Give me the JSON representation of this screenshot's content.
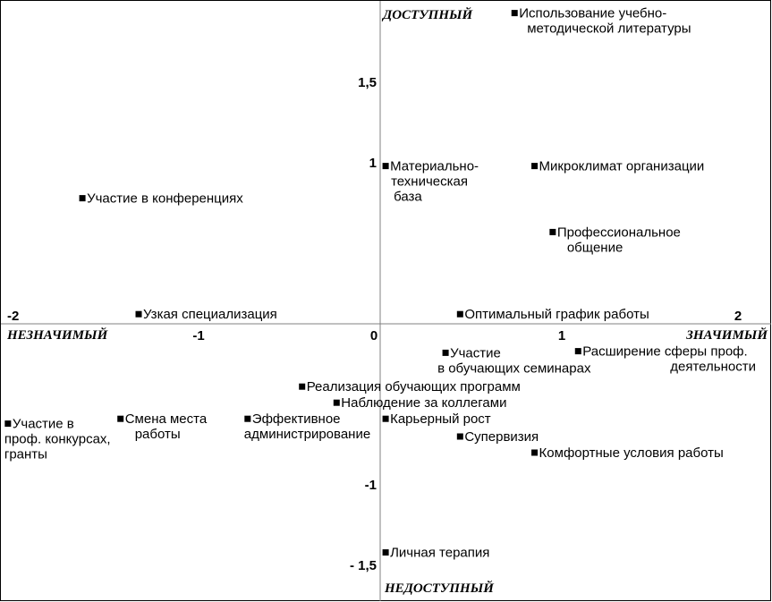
{
  "chart_data": {
    "type": "scatter",
    "xlim": [
      -2.05,
      2.1
    ],
    "ylim": [
      -1.7,
      1.95
    ],
    "grid": false,
    "marker_color": "#000000",
    "axis_color": "#808080",
    "quadrant_labels": {
      "top": "ДОСТУПНЫЙ",
      "bottom": "НЕДОСТУПНЫЙ",
      "left": "НЕЗНАЧИМЫЙ",
      "right": "ЗНАЧИМЫЙ"
    },
    "x_ticks": [
      {
        "value": -2,
        "label": "-2"
      },
      {
        "value": -1,
        "label": "-1"
      },
      {
        "value": 0,
        "label": "0"
      },
      {
        "value": 1,
        "label": "1"
      },
      {
        "value": 2,
        "label": "2"
      }
    ],
    "y_ticks": [
      {
        "value": 1.5,
        "label": "1,5"
      },
      {
        "value": 1,
        "label": "1"
      },
      {
        "value": -1,
        "label": "-1"
      },
      {
        "value": -1.5,
        "label": "- 1,5"
      }
    ],
    "points": [
      {
        "x": 0.74,
        "y": 1.93,
        "label": [
          "Использование учебно-",
          "методической литературы"
        ]
      },
      {
        "x": 0.03,
        "y": 0.98,
        "label": [
          "Материально-",
          "техническая",
          "база"
        ]
      },
      {
        "x": 0.85,
        "y": 0.98,
        "label": [
          "Микроклимат  организации"
        ]
      },
      {
        "x": -1.64,
        "y": 0.78,
        "label": [
          "Участие в конференциях"
        ]
      },
      {
        "x": 0.95,
        "y": 0.57,
        "label": [
          "Профессиональное",
          "общение"
        ]
      },
      {
        "x": -1.33,
        "y": 0.06,
        "label": [
          "Узкая специализация"
        ]
      },
      {
        "x": 0.44,
        "y": 0.06,
        "label": [
          "Оптимальный график работы"
        ]
      },
      {
        "x": 0.36,
        "y": -0.18,
        "label": [
          "Участие",
          "в обучающих семинарах"
        ]
      },
      {
        "x": 1.09,
        "y": -0.17,
        "label": [
          "Расширение сферы проф.",
          "деятельности"
        ]
      },
      {
        "x": -0.43,
        "y": -0.39,
        "label": [
          "Реализация обучающих программ"
        ]
      },
      {
        "x": -0.24,
        "y": -0.49,
        "label": [
          "Наблюдение за коллегами"
        ]
      },
      {
        "x": -2.05,
        "y": -0.62,
        "label": [
          "Участие в",
          "проф. конкурсах,",
          "гранты"
        ]
      },
      {
        "x": -1.43,
        "y": -0.59,
        "label": [
          "Смена места",
          "работы"
        ]
      },
      {
        "x": -0.73,
        "y": -0.59,
        "label": [
          "Эффективное",
          "администрирование"
        ]
      },
      {
        "x": 0.03,
        "y": -0.59,
        "label": [
          "Карьерный рост"
        ]
      },
      {
        "x": 0.44,
        "y": -0.7,
        "label": [
          "Супервизия"
        ]
      },
      {
        "x": 0.85,
        "y": -0.8,
        "label": [
          "Комфортные условия работы"
        ]
      },
      {
        "x": 0.03,
        "y": -1.42,
        "label": [
          "Личная терапия"
        ]
      }
    ]
  }
}
